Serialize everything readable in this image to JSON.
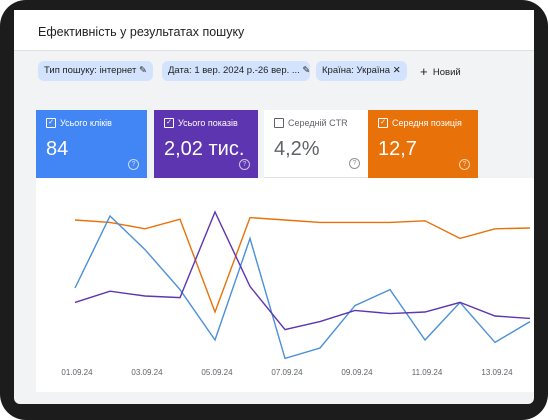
{
  "header": {
    "title": "Ефективність у результатах пошуку"
  },
  "filters": [
    "Тип пошуку: інтернет",
    "Дата: 1 вер. 2024 р.-26 вер. ...",
    "Країна: Україна"
  ],
  "new_filter": "Новий",
  "metrics": [
    {
      "label": "Усього кліків",
      "value": "84",
      "checked": true,
      "color": "#4285f4"
    },
    {
      "label": "Усього показів",
      "value": "2,02 тис.",
      "checked": true,
      "color": "#5e35b1"
    },
    {
      "label": "Середній CTR",
      "value": "4,2%",
      "checked": false,
      "color": "#ffffff"
    },
    {
      "label": "Середня позиція",
      "value": "12,7",
      "checked": true,
      "color": "#e8710a"
    }
  ],
  "chart_data": {
    "type": "line",
    "categories": [
      "01.09.24",
      null,
      "03.09.24",
      null,
      "05.09.24",
      null,
      "07.09.24",
      null,
      "09.09.24",
      null,
      "11.09.24",
      null,
      "13.09.24",
      null
    ],
    "ylim": [
      0,
      100
    ],
    "series": [
      {
        "name": "Середня позиція",
        "color": "#e8710a",
        "values": [
          87.5,
          86,
          82,
          88,
          30,
          89,
          87.5,
          86,
          86,
          86,
          87,
          76,
          82,
          82.5
        ]
      },
      {
        "name": "Усього кліків",
        "color": "#4a8fd8",
        "values": [
          45,
          90,
          69,
          44,
          12.5,
          76,
          1,
          7.5,
          34,
          44,
          12.5,
          36,
          11,
          24
        ]
      },
      {
        "name": "Усього показів",
        "color": "#5e35b1",
        "values": [
          36,
          43,
          40,
          39,
          92.5,
          46,
          19,
          24,
          31,
          29,
          30,
          36,
          27.5,
          26
        ]
      }
    ]
  }
}
